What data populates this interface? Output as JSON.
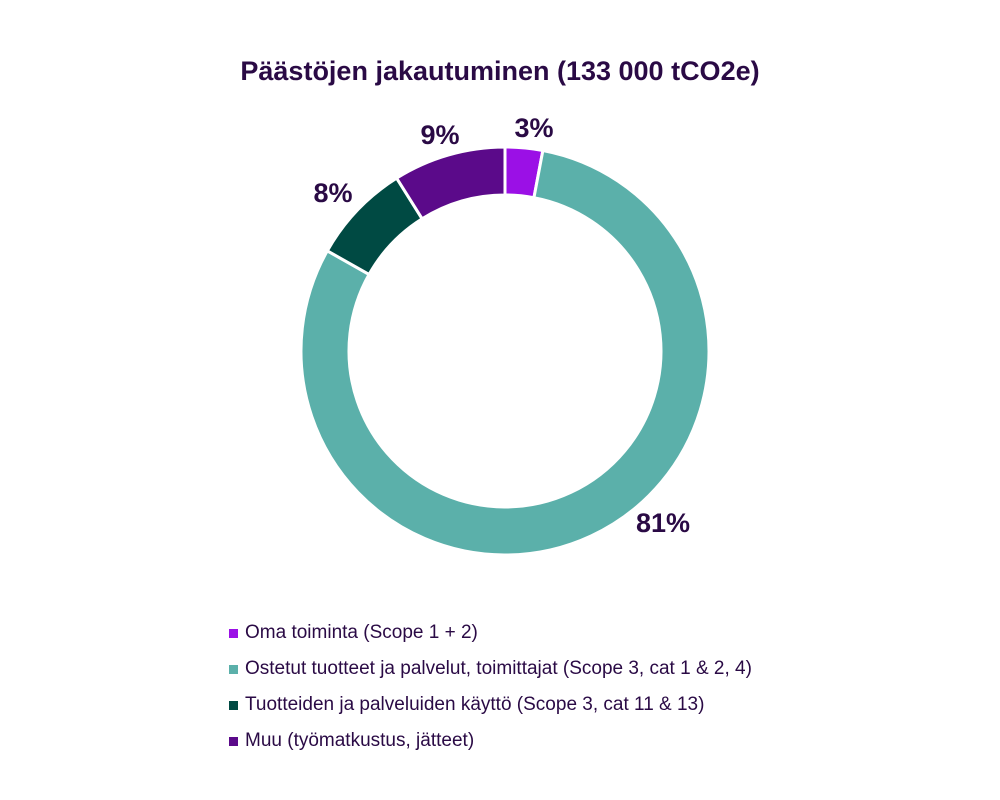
{
  "chart_data": {
    "type": "pie",
    "title": "Päästöjen jakautuminen (133 000 tCO2e)",
    "donut": true,
    "legend_position": "bottom",
    "slices": [
      {
        "label": "Oma toiminta (Scope 1 + 2)",
        "value": 3,
        "display": "3%",
        "color": "#9b10e6"
      },
      {
        "label": "Ostetut tuotteet ja palvelut, toimittajat (Scope 3, cat 1 & 2, 4)",
        "value": 81,
        "display": "81%",
        "color": "#5bb0aa"
      },
      {
        "label": "Tuotteiden ja palveluiden käyttö (Scope 3, cat 11 & 13)",
        "value": 8,
        "display": "8%",
        "color": "#004a43"
      },
      {
        "label": "Muu (työmatkustus, jätteet)",
        "value": 9,
        "display": "9%",
        "color": "#5b0a8a"
      }
    ]
  }
}
